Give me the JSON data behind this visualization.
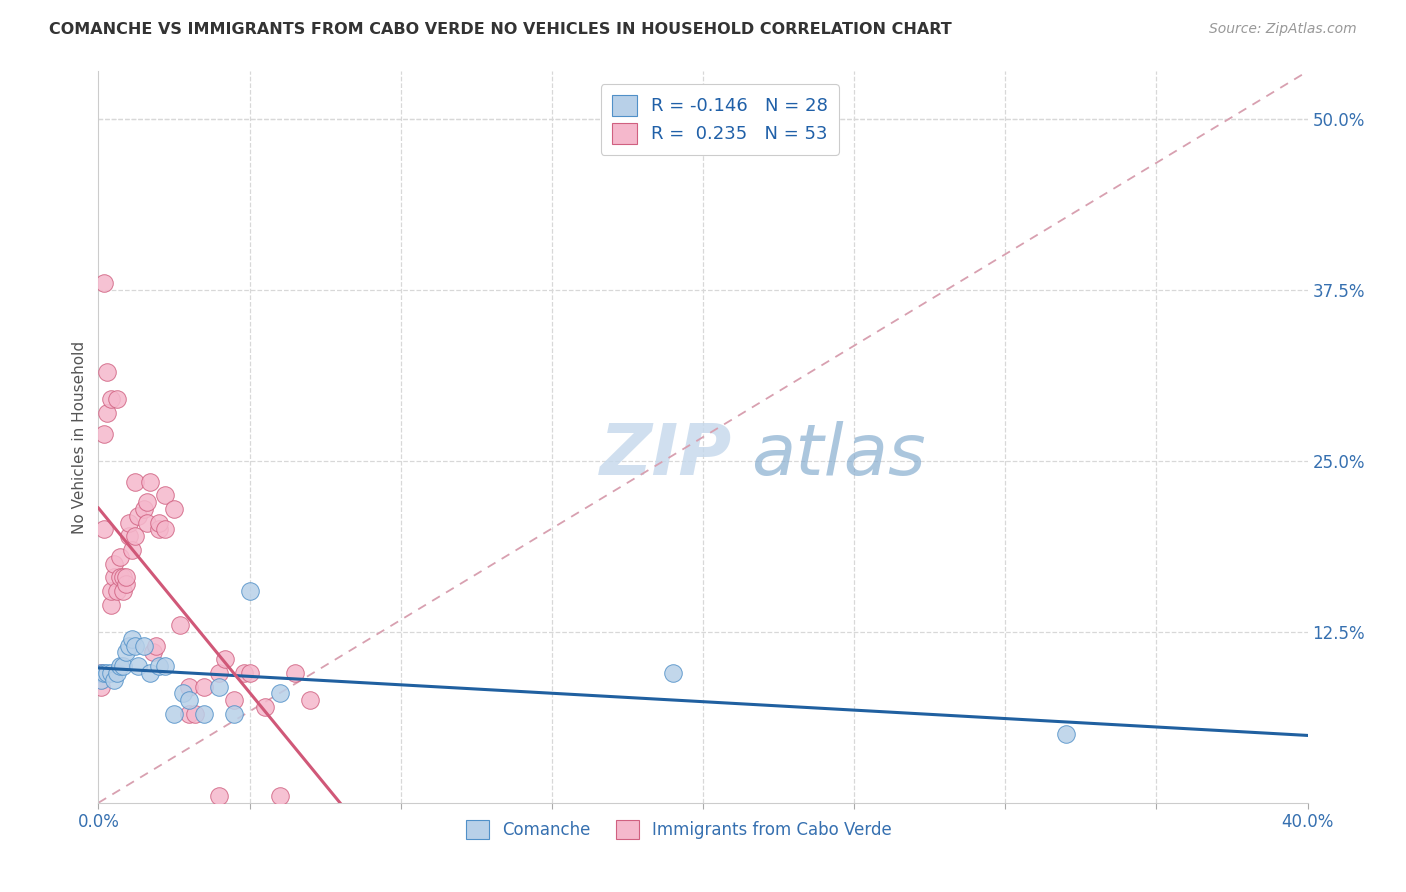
{
  "title": "COMANCHE VS IMMIGRANTS FROM CABO VERDE NO VEHICLES IN HOUSEHOLD CORRELATION CHART",
  "source": "Source: ZipAtlas.com",
  "ylabel": "No Vehicles in Household",
  "right_yticks": [
    "50.0%",
    "37.5%",
    "25.0%",
    "12.5%"
  ],
  "right_ytick_vals": [
    0.5,
    0.375,
    0.25,
    0.125
  ],
  "xlim": [
    0.0,
    0.4
  ],
  "ylim": [
    0.0,
    0.535
  ],
  "legend_r_comanche": "-0.146",
  "legend_n_comanche": "28",
  "legend_r_cabo": "0.235",
  "legend_n_cabo": "53",
  "comanche_fill": "#b8d0e8",
  "cabo_fill": "#f5b8cc",
  "comanche_edge": "#5090c8",
  "cabo_edge": "#d06080",
  "comanche_line_color": "#2060a0",
  "cabo_line_color": "#d05878",
  "dashed_line_color": "#d8a0b0",
  "background_color": "#ffffff",
  "grid_color": "#d8d8d8",
  "comanche_scatter_x": [
    0.001,
    0.001,
    0.002,
    0.003,
    0.004,
    0.005,
    0.006,
    0.007,
    0.008,
    0.009,
    0.01,
    0.011,
    0.012,
    0.013,
    0.015,
    0.017,
    0.02,
    0.022,
    0.025,
    0.028,
    0.03,
    0.035,
    0.04,
    0.045,
    0.05,
    0.06,
    0.19,
    0.32
  ],
  "comanche_scatter_y": [
    0.095,
    0.09,
    0.095,
    0.095,
    0.095,
    0.09,
    0.095,
    0.1,
    0.1,
    0.11,
    0.115,
    0.12,
    0.115,
    0.1,
    0.115,
    0.095,
    0.1,
    0.1,
    0.065,
    0.08,
    0.075,
    0.065,
    0.085,
    0.065,
    0.155,
    0.08,
    0.095,
    0.05
  ],
  "cabo_scatter_x": [
    0.001,
    0.001,
    0.001,
    0.002,
    0.002,
    0.003,
    0.003,
    0.004,
    0.004,
    0.004,
    0.005,
    0.005,
    0.006,
    0.006,
    0.007,
    0.007,
    0.008,
    0.008,
    0.009,
    0.009,
    0.01,
    0.01,
    0.011,
    0.012,
    0.012,
    0.013,
    0.015,
    0.016,
    0.016,
    0.017,
    0.018,
    0.019,
    0.02,
    0.02,
    0.022,
    0.022,
    0.025,
    0.027,
    0.03,
    0.03,
    0.032,
    0.035,
    0.04,
    0.04,
    0.042,
    0.045,
    0.048,
    0.05,
    0.055,
    0.06,
    0.065,
    0.07,
    0.002
  ],
  "cabo_scatter_y": [
    0.09,
    0.085,
    0.095,
    0.2,
    0.27,
    0.285,
    0.315,
    0.145,
    0.155,
    0.295,
    0.165,
    0.175,
    0.155,
    0.295,
    0.165,
    0.18,
    0.155,
    0.165,
    0.16,
    0.165,
    0.195,
    0.205,
    0.185,
    0.195,
    0.235,
    0.21,
    0.215,
    0.205,
    0.22,
    0.235,
    0.11,
    0.115,
    0.2,
    0.205,
    0.225,
    0.2,
    0.215,
    0.13,
    0.065,
    0.085,
    0.065,
    0.085,
    0.095,
    0.005,
    0.105,
    0.075,
    0.095,
    0.095,
    0.07,
    0.005,
    0.095,
    0.075,
    0.38
  ],
  "watermark_zip": "ZIP",
  "watermark_atlas": "atlas",
  "xtick_positions": [
    0.0,
    0.05,
    0.1,
    0.15,
    0.2,
    0.25,
    0.3,
    0.35,
    0.4
  ],
  "xtick_show": [
    true,
    false,
    false,
    false,
    false,
    false,
    false,
    false,
    true
  ]
}
